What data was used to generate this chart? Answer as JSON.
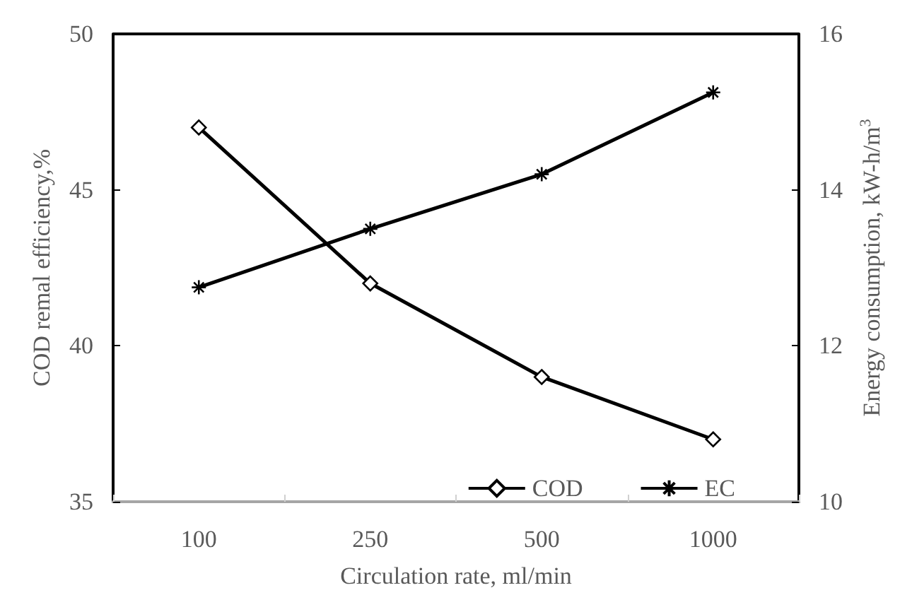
{
  "chart_data": {
    "type": "line",
    "categories": [
      "100",
      "250",
      "500",
      "1000"
    ],
    "xlabel": "Circulation rate, ml/min",
    "ylabel": "COD remal efficiency,%",
    "y2label": "Energy consumption, kW-h/m$^{3}$",
    "ylim": [
      35,
      50
    ],
    "yticks": [
      35,
      40,
      45,
      50
    ],
    "y2lim": [
      10,
      16
    ],
    "y2ticks": [
      10,
      12,
      14,
      16
    ],
    "series": [
      {
        "name": "COD",
        "color": "#000000",
        "values": [
          47,
          42,
          39,
          37
        ],
        "marker": "diamond"
      },
      {
        "name": "EC",
        "color": "#000000",
        "values": [
          12.75,
          13.5,
          14.2,
          15.25
        ],
        "axis": "y2",
        "marker": "cross"
      }
    ],
    "line_style": "solid",
    "grid": false,
    "legend": "bottom right"
  }
}
